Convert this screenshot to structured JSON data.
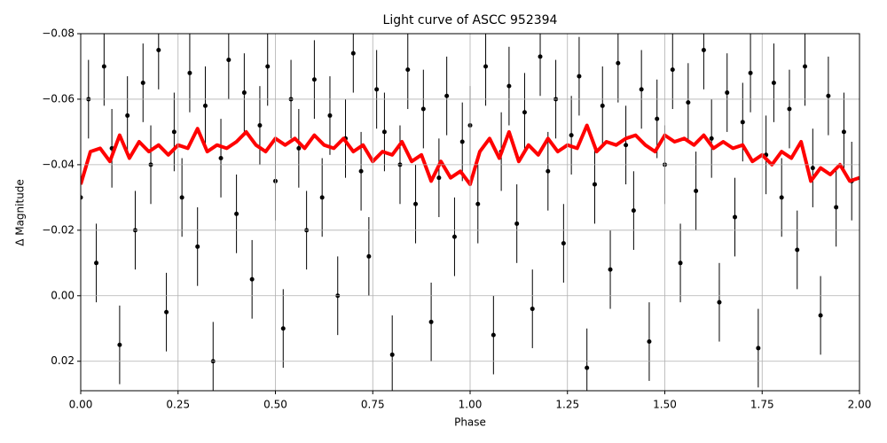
{
  "chart_data": {
    "type": "errorbar_scatter_line",
    "title": "Light curve of ASCC 952394",
    "x_label": "Phase",
    "y_label": "Δ Magnitude",
    "xlim": [
      0,
      2
    ],
    "ylim": [
      -0.08,
      0.029
    ],
    "y_inverted": true,
    "grid": true,
    "xticks": [
      {
        "value": 0,
        "label": "0.00"
      },
      {
        "value": 0.25,
        "label": "0.25"
      },
      {
        "value": 0.5,
        "label": "0.50"
      },
      {
        "value": 0.75,
        "label": "0.75"
      },
      {
        "value": 1,
        "label": "1.00"
      },
      {
        "value": 1.25,
        "label": "1.25"
      },
      {
        "value": 1.5,
        "label": "1.50"
      },
      {
        "value": 1.75,
        "label": "1.75"
      },
      {
        "value": 2,
        "label": "2.00"
      }
    ],
    "yticks": [
      {
        "value": -0.08,
        "label": "−0.08"
      },
      {
        "value": -0.06,
        "label": "−0.06"
      },
      {
        "value": -0.04,
        "label": "−0.04"
      },
      {
        "value": -0.02,
        "label": "−0.02"
      },
      {
        "value": 0,
        "label": "0.00"
      },
      {
        "value": 0.02,
        "label": "0.02"
      }
    ],
    "points": {
      "color": "#000000",
      "yerr": 0.012,
      "x": [
        0,
        0.02,
        0.04,
        0.06,
        0.08,
        0.1,
        0.12,
        0.14,
        0.16,
        0.18,
        0.2,
        0.22,
        0.24,
        0.26,
        0.28,
        0.3,
        0.32,
        0.34,
        0.36,
        0.38,
        0.4,
        0.42,
        0.44,
        0.46,
        0.48,
        0.5,
        0.52,
        0.54,
        0.56,
        0.58,
        0.6,
        0.62,
        0.64,
        0.66,
        0.68,
        0.7,
        0.72,
        0.74,
        0.76,
        0.78,
        0.8,
        0.82,
        0.84,
        0.86,
        0.88,
        0.9,
        0.92,
        0.94,
        0.96,
        0.98,
        1,
        1.02,
        1.04,
        1.06,
        1.08,
        1.1,
        1.12,
        1.14,
        1.16,
        1.18,
        1.2,
        1.22,
        1.24,
        1.26,
        1.28,
        1.3,
        1.32,
        1.34,
        1.36,
        1.38,
        1.4,
        1.42,
        1.44,
        1.46,
        1.48,
        1.5,
        1.52,
        1.54,
        1.56,
        1.58,
        1.6,
        1.62,
        1.64,
        1.66,
        1.68,
        1.7,
        1.72,
        1.74,
        1.76,
        1.78,
        1.8,
        1.82,
        1.84,
        1.86,
        1.88,
        1.9,
        1.92,
        1.94,
        1.96,
        1.98
      ],
      "values": [
        -0.03,
        -0.06,
        -0.01,
        -0.07,
        -0.045,
        0.015,
        -0.055,
        -0.02,
        -0.065,
        -0.04,
        -0.075,
        0.005,
        -0.05,
        -0.03,
        -0.068,
        -0.015,
        -0.058,
        0.02,
        -0.042,
        -0.072,
        -0.025,
        -0.062,
        -0.005,
        -0.052,
        -0.07,
        -0.035,
        0.01,
        -0.06,
        -0.045,
        -0.02,
        -0.066,
        -0.03,
        -0.055,
        0.0,
        -0.048,
        -0.074,
        -0.038,
        -0.012,
        -0.063,
        -0.05,
        0.018,
        -0.04,
        -0.069,
        -0.028,
        -0.057,
        0.008,
        -0.036,
        -0.061,
        -0.018,
        -0.047,
        -0.052,
        -0.028,
        -0.07,
        0.012,
        -0.044,
        -0.064,
        -0.022,
        -0.056,
        0.004,
        -0.073,
        -0.038,
        -0.06,
        -0.016,
        -0.049,
        -0.067,
        0.022,
        -0.034,
        -0.058,
        -0.008,
        -0.071,
        -0.046,
        -0.026,
        -0.063,
        0.014,
        -0.054,
        -0.04,
        -0.069,
        -0.01,
        -0.059,
        -0.032,
        -0.075,
        -0.048,
        0.002,
        -0.062,
        -0.024,
        -0.053,
        -0.068,
        0.016,
        -0.043,
        -0.065,
        -0.03,
        -0.057,
        -0.014,
        -0.07,
        -0.039,
        0.006,
        -0.061,
        -0.027,
        -0.05,
        -0.035
      ]
    },
    "line": {
      "color": "#ff0000",
      "x": [
        0,
        0.025,
        0.05,
        0.075,
        0.1,
        0.125,
        0.15,
        0.175,
        0.2,
        0.225,
        0.25,
        0.275,
        0.3,
        0.325,
        0.35,
        0.375,
        0.4,
        0.425,
        0.45,
        0.475,
        0.5,
        0.525,
        0.55,
        0.575,
        0.6,
        0.625,
        0.65,
        0.675,
        0.7,
        0.725,
        0.75,
        0.775,
        0.8,
        0.825,
        0.85,
        0.875,
        0.9,
        0.925,
        0.95,
        0.975,
        1,
        1.025,
        1.05,
        1.075,
        1.1,
        1.125,
        1.15,
        1.175,
        1.2,
        1.225,
        1.25,
        1.275,
        1.3,
        1.325,
        1.35,
        1.375,
        1.4,
        1.425,
        1.45,
        1.475,
        1.5,
        1.525,
        1.55,
        1.575,
        1.6,
        1.625,
        1.65,
        1.675,
        1.7,
        1.725,
        1.75,
        1.775,
        1.8,
        1.825,
        1.85,
        1.875,
        1.9,
        1.925,
        1.95,
        1.975,
        2
      ],
      "values": [
        -0.034,
        -0.044,
        -0.045,
        -0.041,
        -0.049,
        -0.042,
        -0.047,
        -0.044,
        -0.046,
        -0.043,
        -0.046,
        -0.045,
        -0.051,
        -0.044,
        -0.046,
        -0.045,
        -0.047,
        -0.05,
        -0.046,
        -0.044,
        -0.048,
        -0.046,
        -0.048,
        -0.045,
        -0.049,
        -0.046,
        -0.045,
        -0.048,
        -0.044,
        -0.046,
        -0.041,
        -0.044,
        -0.043,
        -0.047,
        -0.041,
        -0.043,
        -0.035,
        -0.041,
        -0.036,
        -0.038,
        -0.034,
        -0.044,
        -0.048,
        -0.042,
        -0.05,
        -0.041,
        -0.046,
        -0.043,
        -0.048,
        -0.044,
        -0.046,
        -0.045,
        -0.052,
        -0.044,
        -0.047,
        -0.046,
        -0.048,
        -0.049,
        -0.046,
        -0.044,
        -0.049,
        -0.047,
        -0.048,
        -0.046,
        -0.049,
        -0.045,
        -0.047,
        -0.045,
        -0.046,
        -0.041,
        -0.043,
        -0.04,
        -0.044,
        -0.042,
        -0.047,
        -0.035,
        -0.039,
        -0.037,
        -0.04,
        -0.035,
        -0.036
      ]
    }
  }
}
